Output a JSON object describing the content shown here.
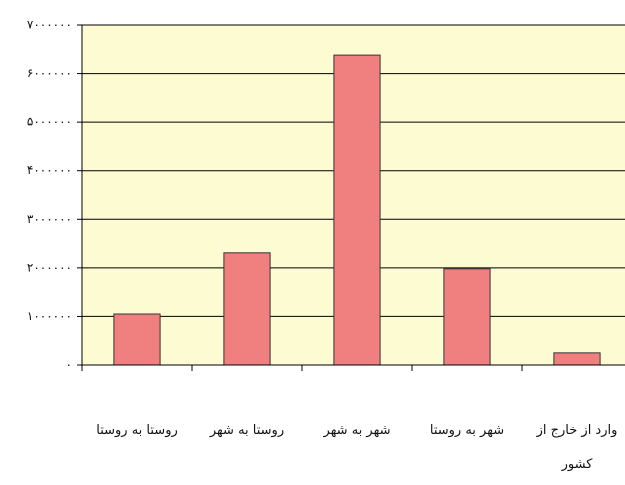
{
  "chart_data": {
    "type": "bar",
    "categories": [
      "روستا به روستا",
      "روستا به شهر",
      "شهر به شهر",
      "شهر به روستا",
      "وارد از خارج از کشور"
    ],
    "values": [
      1050000,
      2310000,
      6380000,
      1980000,
      250000
    ],
    "color": "#f08080",
    "ylim": [
      0,
      7000000
    ],
    "yticks": [
      {
        "value": 0,
        "label": "۰"
      },
      {
        "value": 1000000,
        "label": "۱۰۰۰۰۰۰"
      },
      {
        "value": 2000000,
        "label": "۲۰۰۰۰۰۰"
      },
      {
        "value": 3000000,
        "label": "۳۰۰۰۰۰۰"
      },
      {
        "value": 4000000,
        "label": "۴۰۰۰۰۰۰"
      },
      {
        "value": 5000000,
        "label": "۵۰۰۰۰۰۰"
      },
      {
        "value": 6000000,
        "label": "۶۰۰۰۰۰۰"
      },
      {
        "value": 7000000,
        "label": "۷۰۰۰۰۰۰"
      }
    ],
    "grid": true
  }
}
